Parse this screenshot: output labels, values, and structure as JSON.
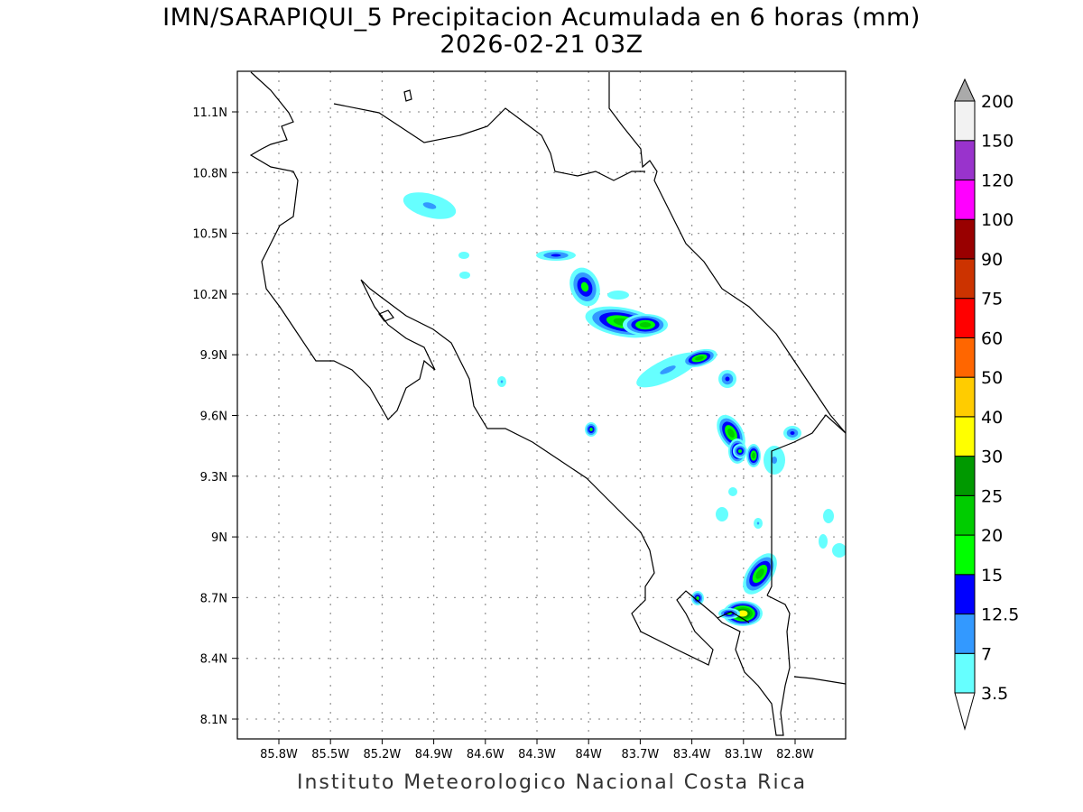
{
  "title_line1": "IMN/SARAPIQUI_5 Precipitacion Acumulada en 6 horas (mm)",
  "title_line2": "2026-02-21 03Z",
  "footer": "Instituto Meteorologico Nacional Costa Rica",
  "map": {
    "lon_ticks": [
      "85.8W",
      "85.5W",
      "85.2W",
      "84.9W",
      "84.6W",
      "84.3W",
      "84W",
      "83.7W",
      "83.4W",
      "83.1W",
      "82.8W"
    ],
    "lat_ticks": [
      "11.1N",
      "10.8N",
      "10.5N",
      "10.2N",
      "9.9N",
      "9.6N",
      "9.3N",
      "9N",
      "8.7N",
      "8.4N",
      "8.1N"
    ]
  },
  "colorbar": {
    "levels": [
      "3.5",
      "7",
      "12.5",
      "15",
      "20",
      "25",
      "30",
      "40",
      "50",
      "60",
      "75",
      "90",
      "100",
      "120",
      "150",
      "200"
    ],
    "colors": [
      "#66ffff",
      "#3399ff",
      "#0000ff",
      "#00ff00",
      "#00cc00",
      "#009900",
      "#ffff00",
      "#ffcc00",
      "#ff6600",
      "#ff0000",
      "#cc3300",
      "#990000",
      "#ff00ff",
      "#9933cc",
      "#f2f2f2"
    ],
    "over_color": "#aaaaaa",
    "under_color": "#ffffff"
  }
}
